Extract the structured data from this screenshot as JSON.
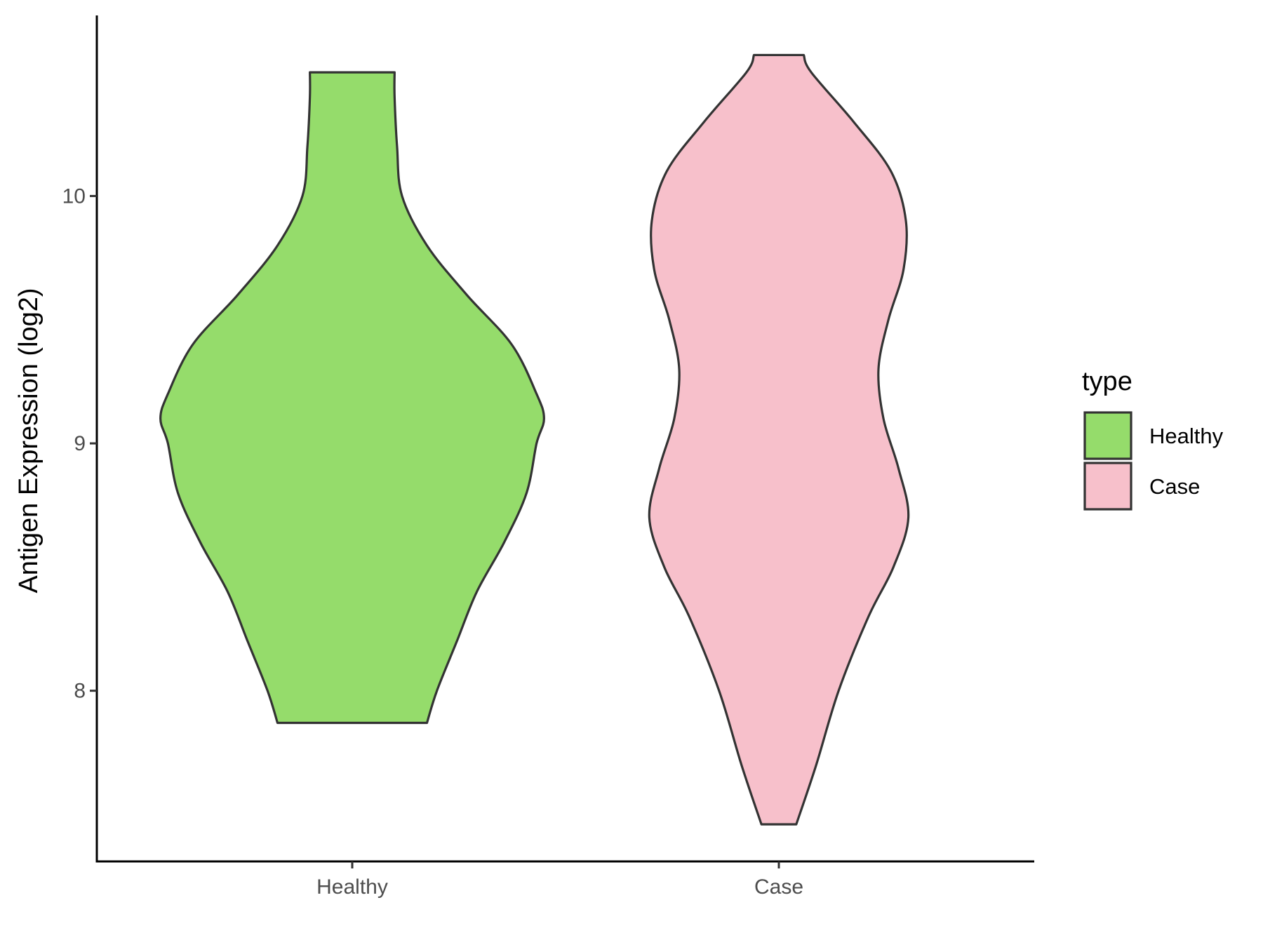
{
  "chart_data": {
    "type": "violin",
    "title": "",
    "xlabel": "",
    "ylabel": "Antigen Expression (log2)",
    "categories": [
      "Healthy",
      "Case"
    ],
    "yticks": [
      8,
      9,
      10
    ],
    "ytick_labels": [
      "8",
      "9",
      "10"
    ],
    "ylim": [
      7.31,
      10.73
    ],
    "grid": false,
    "legend": {
      "title": "type",
      "position": "right",
      "entries": [
        "Healthy",
        "Case"
      ]
    },
    "series": [
      {
        "name": "Healthy",
        "color": "#95DC6B",
        "min": 7.87,
        "max": 10.5,
        "half_width_profile": [
          [
            7.87,
            0.3
          ],
          [
            8.0,
            0.34
          ],
          [
            8.2,
            0.42
          ],
          [
            8.4,
            0.5
          ],
          [
            8.6,
            0.61
          ],
          [
            8.8,
            0.7
          ],
          [
            9.0,
            0.74
          ],
          [
            9.1,
            0.77
          ],
          [
            9.2,
            0.74
          ],
          [
            9.4,
            0.64
          ],
          [
            9.6,
            0.46
          ],
          [
            9.8,
            0.3
          ],
          [
            10.0,
            0.2
          ],
          [
            10.2,
            0.18
          ],
          [
            10.4,
            0.17
          ],
          [
            10.5,
            0.17
          ]
        ]
      },
      {
        "name": "Case",
        "color": "#F7C0CB",
        "min": 7.46,
        "max": 10.57,
        "half_width_profile": [
          [
            7.46,
            0.07
          ],
          [
            7.7,
            0.15
          ],
          [
            8.0,
            0.24
          ],
          [
            8.3,
            0.36
          ],
          [
            8.5,
            0.46
          ],
          [
            8.7,
            0.52
          ],
          [
            8.9,
            0.48
          ],
          [
            9.1,
            0.42
          ],
          [
            9.3,
            0.4
          ],
          [
            9.5,
            0.44
          ],
          [
            9.7,
            0.5
          ],
          [
            9.9,
            0.51
          ],
          [
            10.1,
            0.45
          ],
          [
            10.3,
            0.3
          ],
          [
            10.5,
            0.13
          ],
          [
            10.57,
            0.1
          ]
        ]
      }
    ]
  }
}
